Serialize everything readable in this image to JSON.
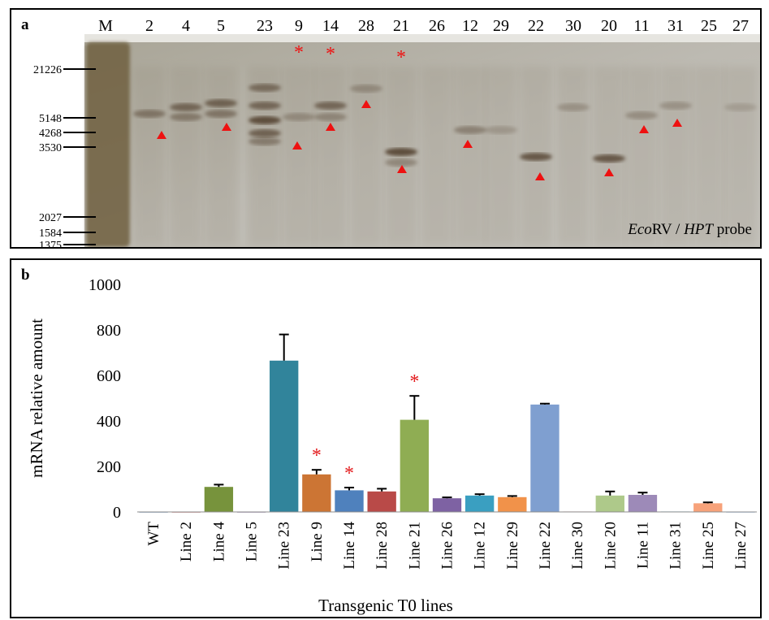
{
  "panel_a": {
    "panel_label": "a",
    "marker_label": "M",
    "lane_labels": [
      "2",
      "4",
      "5",
      "23",
      "9",
      "14",
      "28",
      "21",
      "26",
      "12",
      "29",
      "22",
      "30",
      "20",
      "11",
      "31",
      "25",
      "27"
    ],
    "size_markers": [
      "21226",
      "5148",
      "4268",
      "3530",
      "2027",
      "1584",
      "1375"
    ],
    "asterisk_lanes": [
      "9",
      "14",
      "21"
    ],
    "asterisk_symbol": "*",
    "probe_label_italic_1": "Eco",
    "probe_label_plain_1": "RV / ",
    "probe_label_italic_2": "HPT",
    "probe_label_plain_2": " probe",
    "colors": {
      "blot_bg": "#b9b5ab",
      "band": "#5a4a38",
      "marker_lane": "#6e5a3a",
      "arrowhead": "#ee1111"
    }
  },
  "chart_data": {
    "type": "bar",
    "panel_label": "b",
    "ylabel": "mRNA relative amount",
    "xlabel": "Transgenic T0 lines",
    "ylim": [
      0,
      1000
    ],
    "yticks": [
      "0",
      "200",
      "400",
      "600",
      "800",
      "1000"
    ],
    "categories": [
      "WT",
      "Line 2",
      "Line 4",
      "Line 5",
      "Line 23",
      "Line 9",
      "Line 14",
      "Line 28",
      "Line 21",
      "Line 26",
      "Line 12",
      "Line 29",
      "Line 22",
      "Line 30",
      "Line 20",
      "Line 11",
      "Line 31",
      "Line 25",
      "Line 27"
    ],
    "values": [
      1,
      1,
      110,
      1,
      665,
      165,
      95,
      90,
      405,
      60,
      72,
      65,
      472,
      2,
      72,
      75,
      2,
      38,
      1
    ],
    "errors": [
      0,
      0,
      10,
      0,
      115,
      20,
      12,
      12,
      105,
      4,
      6,
      5,
      4,
      0,
      18,
      10,
      0,
      4,
      0
    ],
    "colors": [
      "#4a7ab0",
      "#c0504d",
      "#77933c",
      "#7e649e",
      "#31849b",
      "#cc7534",
      "#4f81bd",
      "#b94a48",
      "#8fad53",
      "#7e62a3",
      "#3a9fc1",
      "#f1924a",
      "#7f9fd0",
      "#d49692",
      "#aec98a",
      "#9d8ab8",
      "#4bacc6",
      "#f7a27a",
      "#8eb4e3"
    ],
    "asterisk_categories": [
      "Line 9",
      "Line 14",
      "Line 21"
    ],
    "asterisk_symbol": "*",
    "asterisk_color": "#e31a1c"
  }
}
